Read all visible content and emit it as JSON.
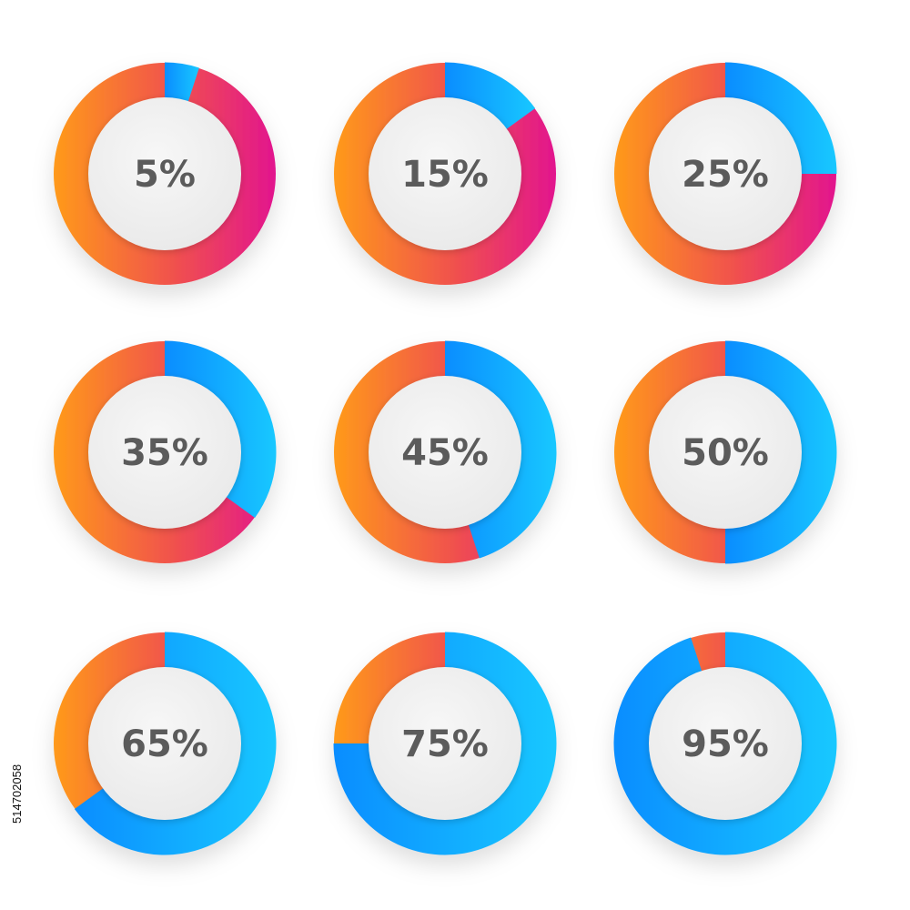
{
  "chart_data": {
    "type": "pie",
    "series_name": "",
    "colors": {
      "value_gradient": [
        "#0a8dff",
        "#18c8ff"
      ],
      "remainder_gradient": [
        "#ff9a1a",
        "#f0504e",
        "#e2158e"
      ],
      "center": "#f1f1f1",
      "label": "#5b5b5b"
    },
    "charts": [
      {
        "value": 5,
        "label": "5%"
      },
      {
        "value": 15,
        "label": "15%"
      },
      {
        "value": 25,
        "label": "25%"
      },
      {
        "value": 35,
        "label": "35%"
      },
      {
        "value": 45,
        "label": "45%"
      },
      {
        "value": 50,
        "label": "50%"
      },
      {
        "value": 65,
        "label": "65%"
      },
      {
        "value": 75,
        "label": "75%"
      },
      {
        "value": 95,
        "label": "95%"
      }
    ]
  },
  "watermark": {
    "stock_id": "514702058"
  }
}
